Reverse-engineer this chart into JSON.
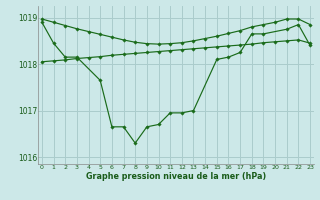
{
  "xlabel": "Graphe pression niveau de la mer (hPa)",
  "background_color": "#cce8e8",
  "grid_color": "#aacccc",
  "line_color": "#1a6b1a",
  "y_main": [
    1018.9,
    1018.45,
    1018.15,
    1018.15,
    1017.65,
    1016.65,
    1016.65,
    1016.3,
    1016.65,
    1016.7,
    1016.95,
    1016.95,
    1017.0,
    1018.1,
    1018.15,
    1018.25,
    1018.65,
    1018.65,
    1018.75,
    1018.85,
    1018.4
  ],
  "y_main_x": [
    0,
    1,
    2,
    3,
    5,
    6,
    7,
    8,
    9,
    10,
    11,
    12,
    13,
    15,
    16,
    17,
    18,
    19,
    21,
    22,
    23
  ],
  "y_upper_x": [
    0,
    1,
    2,
    3,
    4,
    5,
    6,
    7,
    8,
    9,
    10,
    11,
    12,
    13,
    14,
    15,
    16,
    17,
    18,
    19,
    20,
    21,
    22,
    23
  ],
  "y_upper": [
    1018.97,
    1018.9,
    1018.83,
    1018.76,
    1018.7,
    1018.64,
    1018.58,
    1018.52,
    1018.47,
    1018.44,
    1018.43,
    1018.44,
    1018.46,
    1018.5,
    1018.55,
    1018.6,
    1018.66,
    1018.72,
    1018.8,
    1018.85,
    1018.9,
    1018.97,
    1018.97,
    1018.85
  ],
  "y_lower_x": [
    0,
    1,
    2,
    3,
    4,
    5,
    6,
    7,
    8,
    9,
    10,
    11,
    12,
    13,
    14,
    15,
    16,
    17,
    18,
    19,
    20,
    21,
    22,
    23
  ],
  "y_lower": [
    1018.05,
    1018.07,
    1018.09,
    1018.12,
    1018.14,
    1018.16,
    1018.19,
    1018.21,
    1018.23,
    1018.25,
    1018.27,
    1018.29,
    1018.31,
    1018.33,
    1018.35,
    1018.37,
    1018.39,
    1018.41,
    1018.43,
    1018.46,
    1018.48,
    1018.5,
    1018.52,
    1018.45
  ],
  "ylim": [
    1015.85,
    1019.25
  ],
  "yticks": [
    1016,
    1017,
    1018,
    1019
  ],
  "xlim": [
    -0.3,
    23.3
  ],
  "xticks": [
    0,
    1,
    2,
    3,
    4,
    5,
    6,
    7,
    8,
    9,
    10,
    11,
    12,
    13,
    14,
    15,
    16,
    17,
    18,
    19,
    20,
    21,
    22,
    23
  ]
}
